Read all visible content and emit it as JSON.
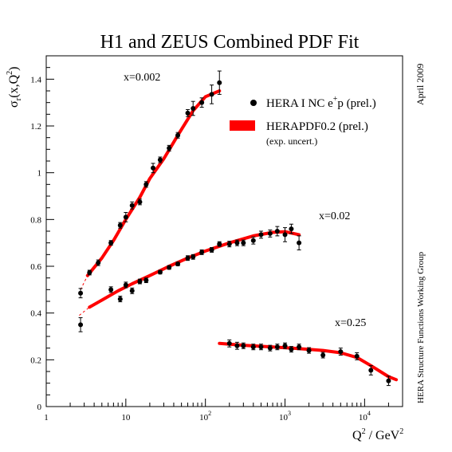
{
  "chart_data": {
    "type": "scatter",
    "title": "H1 and ZEUS Combined PDF Fit",
    "xlabel_base": "Q",
    "xlabel_exp": "2",
    "xlabel_unit": " / GeV",
    "xlabel_unit_exp": "2",
    "ylabel_sym": "σ",
    "ylabel_sub": "r",
    "ylabel_arg": "(x,Q",
    "ylabel_exp": "2",
    "ylabel_close": ")",
    "xscale": "log",
    "xlim": [
      1,
      30000
    ],
    "ylim": [
      0,
      1.5
    ],
    "yticks": [
      "0",
      "0.2",
      "0.4",
      "0.6",
      "0.8",
      "1",
      "1.2",
      "1.4"
    ],
    "xticks": [
      {
        "base": "1",
        "exp": ""
      },
      {
        "base": "10",
        "exp": ""
      },
      {
        "base": "10",
        "exp": "2"
      },
      {
        "base": "10",
        "exp": "3"
      },
      {
        "base": "10",
        "exp": "4"
      }
    ],
    "side_right_top": "April 2009",
    "side_right_bottom": "HERA Structure Functions Working Group",
    "legend": {
      "data_label": "HERA I NC e",
      "data_label_sup": "+",
      "data_label_end": "p (prel.)",
      "fit_label": "HERAPDF0.2 (prel.)",
      "fit_sublabel": "(exp. uncert.)"
    },
    "colors": {
      "fit": "#ff0000",
      "data": "#000000"
    },
    "series": [
      {
        "name": "x=0.002",
        "points": [
          {
            "x": 2.7,
            "y": 0.485,
            "e": 0.02
          },
          {
            "x": 3.5,
            "y": 0.573,
            "e": 0.01
          },
          {
            "x": 4.5,
            "y": 0.615,
            "e": 0.012
          },
          {
            "x": 6.5,
            "y": 0.7,
            "e": 0.01
          },
          {
            "x": 8.5,
            "y": 0.775,
            "e": 0.012
          },
          {
            "x": 10,
            "y": 0.81,
            "e": 0.02
          },
          {
            "x": 12,
            "y": 0.86,
            "e": 0.015
          },
          {
            "x": 15,
            "y": 0.875,
            "e": 0.012
          },
          {
            "x": 18,
            "y": 0.95,
            "e": 0.012
          },
          {
            "x": 22,
            "y": 1.02,
            "e": 0.02
          },
          {
            "x": 27,
            "y": 1.055,
            "e": 0.012
          },
          {
            "x": 35,
            "y": 1.105,
            "e": 0.012
          },
          {
            "x": 45,
            "y": 1.16,
            "e": 0.012
          },
          {
            "x": 60,
            "y": 1.255,
            "e": 0.015
          },
          {
            "x": 70,
            "y": 1.275,
            "e": 0.03
          },
          {
            "x": 90,
            "y": 1.3,
            "e": 0.02
          },
          {
            "x": 120,
            "y": 1.335,
            "e": 0.04
          },
          {
            "x": 150,
            "y": 1.385,
            "e": 0.05
          }
        ],
        "fit": [
          {
            "x": 3.3,
            "y": 0.56
          },
          {
            "x": 5,
            "y": 0.635
          },
          {
            "x": 7,
            "y": 0.71
          },
          {
            "x": 10,
            "y": 0.8
          },
          {
            "x": 15,
            "y": 0.895
          },
          {
            "x": 20,
            "y": 0.975
          },
          {
            "x": 30,
            "y": 1.06
          },
          {
            "x": 45,
            "y": 1.16
          },
          {
            "x": 70,
            "y": 1.265
          },
          {
            "x": 100,
            "y": 1.325
          },
          {
            "x": 150,
            "y": 1.35
          }
        ],
        "extrapolation": [
          {
            "x": 2.7,
            "y": 0.5
          },
          {
            "x": 3.3,
            "y": 0.56
          }
        ]
      },
      {
        "name": "x=0.02",
        "points": [
          {
            "x": 2.7,
            "y": 0.35,
            "e": 0.03
          },
          {
            "x": 6.5,
            "y": 0.5,
            "e": 0.012
          },
          {
            "x": 8.5,
            "y": 0.46,
            "e": 0.012
          },
          {
            "x": 10,
            "y": 0.52,
            "e": 0.012
          },
          {
            "x": 12,
            "y": 0.495,
            "e": 0.012
          },
          {
            "x": 15,
            "y": 0.535,
            "e": 0.01
          },
          {
            "x": 18,
            "y": 0.54,
            "e": 0.01
          },
          {
            "x": 27,
            "y": 0.575,
            "e": 0.008
          },
          {
            "x": 35,
            "y": 0.595,
            "e": 0.008
          },
          {
            "x": 45,
            "y": 0.61,
            "e": 0.008
          },
          {
            "x": 60,
            "y": 0.635,
            "e": 0.01
          },
          {
            "x": 70,
            "y": 0.64,
            "e": 0.01
          },
          {
            "x": 90,
            "y": 0.66,
            "e": 0.01
          },
          {
            "x": 120,
            "y": 0.67,
            "e": 0.01
          },
          {
            "x": 150,
            "y": 0.695,
            "e": 0.01
          },
          {
            "x": 200,
            "y": 0.695,
            "e": 0.012
          },
          {
            "x": 250,
            "y": 0.7,
            "e": 0.012
          },
          {
            "x": 300,
            "y": 0.7,
            "e": 0.012
          },
          {
            "x": 400,
            "y": 0.71,
            "e": 0.015
          },
          {
            "x": 500,
            "y": 0.735,
            "e": 0.015
          },
          {
            "x": 650,
            "y": 0.74,
            "e": 0.015
          },
          {
            "x": 800,
            "y": 0.75,
            "e": 0.02
          },
          {
            "x": 1000,
            "y": 0.735,
            "e": 0.03
          },
          {
            "x": 1200,
            "y": 0.76,
            "e": 0.02
          },
          {
            "x": 1500,
            "y": 0.7,
            "e": 0.03
          }
        ],
        "fit": [
          {
            "x": 3.5,
            "y": 0.425
          },
          {
            "x": 5,
            "y": 0.455
          },
          {
            "x": 8,
            "y": 0.495
          },
          {
            "x": 12,
            "y": 0.525
          },
          {
            "x": 20,
            "y": 0.56
          },
          {
            "x": 35,
            "y": 0.6
          },
          {
            "x": 60,
            "y": 0.635
          },
          {
            "x": 100,
            "y": 0.665
          },
          {
            "x": 200,
            "y": 0.7
          },
          {
            "x": 400,
            "y": 0.73
          },
          {
            "x": 700,
            "y": 0.745
          },
          {
            "x": 1000,
            "y": 0.748
          },
          {
            "x": 1500,
            "y": 0.735
          }
        ],
        "extrapolation": [
          {
            "x": 2.6,
            "y": 0.39
          },
          {
            "x": 3.5,
            "y": 0.425
          }
        ]
      },
      {
        "name": "x=0.25",
        "points": [
          {
            "x": 200,
            "y": 0.27,
            "e": 0.015
          },
          {
            "x": 250,
            "y": 0.26,
            "e": 0.015
          },
          {
            "x": 300,
            "y": 0.26,
            "e": 0.012
          },
          {
            "x": 400,
            "y": 0.255,
            "e": 0.012
          },
          {
            "x": 500,
            "y": 0.255,
            "e": 0.012
          },
          {
            "x": 650,
            "y": 0.25,
            "e": 0.012
          },
          {
            "x": 800,
            "y": 0.255,
            "e": 0.012
          },
          {
            "x": 1000,
            "y": 0.26,
            "e": 0.012
          },
          {
            "x": 1200,
            "y": 0.245,
            "e": 0.012
          },
          {
            "x": 1500,
            "y": 0.255,
            "e": 0.012
          },
          {
            "x": 2000,
            "y": 0.24,
            "e": 0.012
          },
          {
            "x": 3000,
            "y": 0.22,
            "e": 0.012
          },
          {
            "x": 5000,
            "y": 0.235,
            "e": 0.015
          },
          {
            "x": 8000,
            "y": 0.215,
            "e": 0.015
          },
          {
            "x": 12000,
            "y": 0.155,
            "e": 0.02
          },
          {
            "x": 20000,
            "y": 0.11,
            "e": 0.02
          }
        ],
        "fit": [
          {
            "x": 150,
            "y": 0.27
          },
          {
            "x": 300,
            "y": 0.262
          },
          {
            "x": 700,
            "y": 0.255
          },
          {
            "x": 1500,
            "y": 0.248
          },
          {
            "x": 3000,
            "y": 0.24
          },
          {
            "x": 5000,
            "y": 0.23
          },
          {
            "x": 8000,
            "y": 0.21
          },
          {
            "x": 12000,
            "y": 0.175
          },
          {
            "x": 20000,
            "y": 0.128
          },
          {
            "x": 25000,
            "y": 0.115
          }
        ]
      }
    ]
  }
}
